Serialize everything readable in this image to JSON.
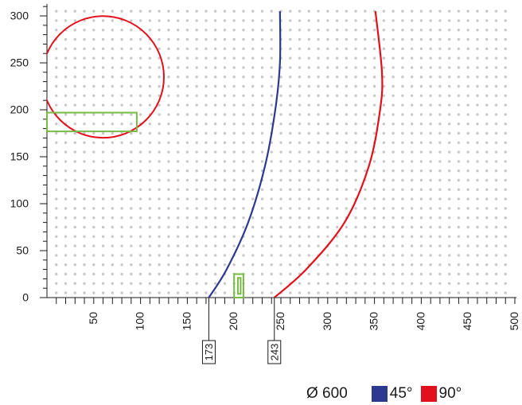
{
  "chart_data": {
    "type": "line",
    "x_axis": {
      "range": [
        0,
        500
      ],
      "ticks": [
        50,
        100,
        150,
        200,
        250,
        300,
        350,
        400,
        450,
        500
      ],
      "minor_step": 10,
      "markers": [
        173,
        243
      ]
    },
    "y_axis": {
      "range": [
        0,
        300
      ],
      "ticks": [
        0,
        50,
        100,
        150,
        200,
        250,
        300
      ],
      "minor_step": 10
    },
    "grid": "dotted",
    "series": [
      {
        "name": "45°",
        "color": "#2b3990",
        "points": [
          [
            173,
            0
          ],
          [
            192,
            30
          ],
          [
            215,
            80
          ],
          [
            233,
            140
          ],
          [
            244,
            200
          ],
          [
            249,
            250
          ],
          [
            249,
            305
          ]
        ]
      },
      {
        "name": "90°",
        "color": "#e1101b",
        "points": [
          [
            243,
            0
          ],
          [
            277,
            30
          ],
          [
            318,
            80
          ],
          [
            344,
            140
          ],
          [
            356,
            200
          ],
          [
            358,
            240
          ],
          [
            351,
            305
          ]
        ]
      }
    ],
    "shapes": [
      {
        "kind": "circle",
        "color": "#e1101b",
        "center": [
          60,
          235
        ],
        "radius": 65
      },
      {
        "kind": "rectangle",
        "color": "#77bb44",
        "x": [
          0,
          96
        ],
        "y": [
          177,
          197
        ]
      },
      {
        "kind": "rectangle",
        "color": "#77bb44",
        "x": [
          200,
          210
        ],
        "y": [
          0,
          25
        ]
      },
      {
        "kind": "rectangle",
        "color": "#77bb44",
        "x": [
          204,
          207
        ],
        "y": [
          4,
          21
        ]
      }
    ],
    "legend": {
      "diameter_label": "Ø 600",
      "items": [
        {
          "label": "45°",
          "color": "#2b3990"
        },
        {
          "label": "90°",
          "color": "#e1101b"
        }
      ],
      "position": "bottom-right"
    }
  }
}
